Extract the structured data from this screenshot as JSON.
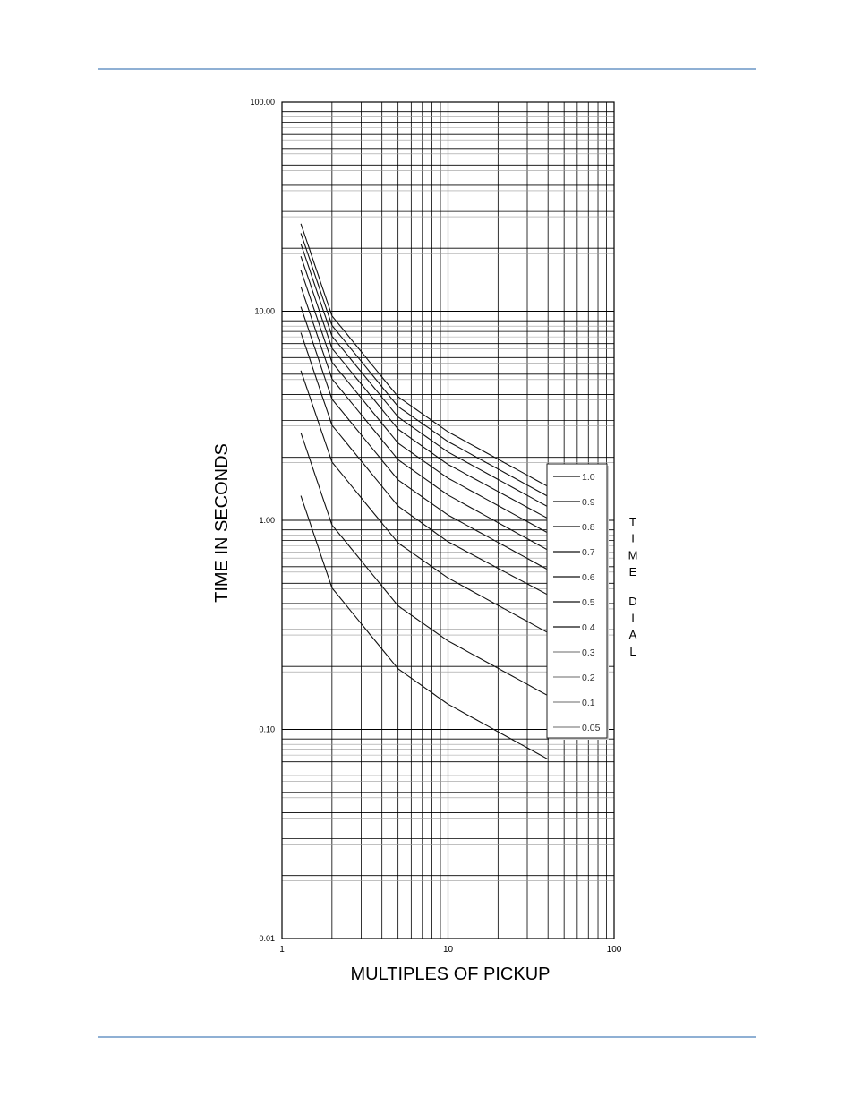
{
  "page": {
    "rule_color": "#8fb0d4"
  },
  "chart_data": {
    "type": "line",
    "title": "",
    "xlabel": "MULTIPLES OF PICKUP",
    "ylabel": "TIME IN SECONDS",
    "x_scale": "log",
    "y_scale": "log",
    "xlim": [
      1,
      100
    ],
    "ylim": [
      0.01,
      100
    ],
    "x_ticks": [
      {
        "value": 1,
        "label": "1"
      },
      {
        "value": 10,
        "label": "10"
      },
      {
        "value": 100,
        "label": "100"
      }
    ],
    "y_ticks": [
      {
        "value": 0.01,
        "label": "0.01"
      },
      {
        "value": 0.1,
        "label": "0.10"
      },
      {
        "value": 1,
        "label": "1.00"
      },
      {
        "value": 10,
        "label": "10.00"
      },
      {
        "value": 100,
        "label": "100.00"
      }
    ],
    "grid": true,
    "legend_title": "TIME DIAL",
    "legend_position": "right",
    "series": [
      {
        "name": "1.0",
        "x": [
          1.3,
          2,
          5,
          10,
          40
        ],
        "y": [
          26.2,
          9.5,
          3.9,
          2.65,
          1.45
        ]
      },
      {
        "name": "0.9",
        "x": [
          1.3,
          2,
          5,
          10,
          40
        ],
        "y": [
          23.6,
          8.55,
          3.5,
          2.38,
          1.3
        ]
      },
      {
        "name": "0.8",
        "x": [
          1.3,
          2,
          5,
          10,
          40
        ],
        "y": [
          21.0,
          7.6,
          3.12,
          2.12,
          1.16
        ]
      },
      {
        "name": "0.7",
        "x": [
          1.3,
          2,
          5,
          10,
          40
        ],
        "y": [
          18.3,
          6.65,
          2.73,
          1.85,
          1.02
        ]
      },
      {
        "name": "0.6",
        "x": [
          1.3,
          2,
          5,
          10,
          40
        ],
        "y": [
          15.7,
          5.7,
          2.34,
          1.59,
          0.87
        ]
      },
      {
        "name": "0.5",
        "x": [
          1.3,
          2,
          5,
          10,
          40
        ],
        "y": [
          13.1,
          4.75,
          1.95,
          1.32,
          0.72
        ]
      },
      {
        "name": "0.4",
        "x": [
          1.3,
          2,
          5,
          10,
          40
        ],
        "y": [
          10.5,
          3.8,
          1.56,
          1.06,
          0.58
        ]
      },
      {
        "name": "0.3",
        "x": [
          1.3,
          2,
          5,
          10,
          40
        ],
        "y": [
          7.9,
          2.85,
          1.17,
          0.79,
          0.44
        ]
      },
      {
        "name": "0.2",
        "x": [
          1.3,
          2,
          5,
          10,
          40
        ],
        "y": [
          5.2,
          1.9,
          0.78,
          0.53,
          0.29
        ]
      },
      {
        "name": "0.1",
        "x": [
          1.3,
          2,
          5,
          10,
          40
        ],
        "y": [
          2.62,
          0.95,
          0.39,
          0.265,
          0.145
        ]
      },
      {
        "name": "0.05",
        "x": [
          1.3,
          2,
          5,
          10,
          40
        ],
        "y": [
          1.31,
          0.475,
          0.195,
          0.132,
          0.072
        ]
      }
    ]
  }
}
